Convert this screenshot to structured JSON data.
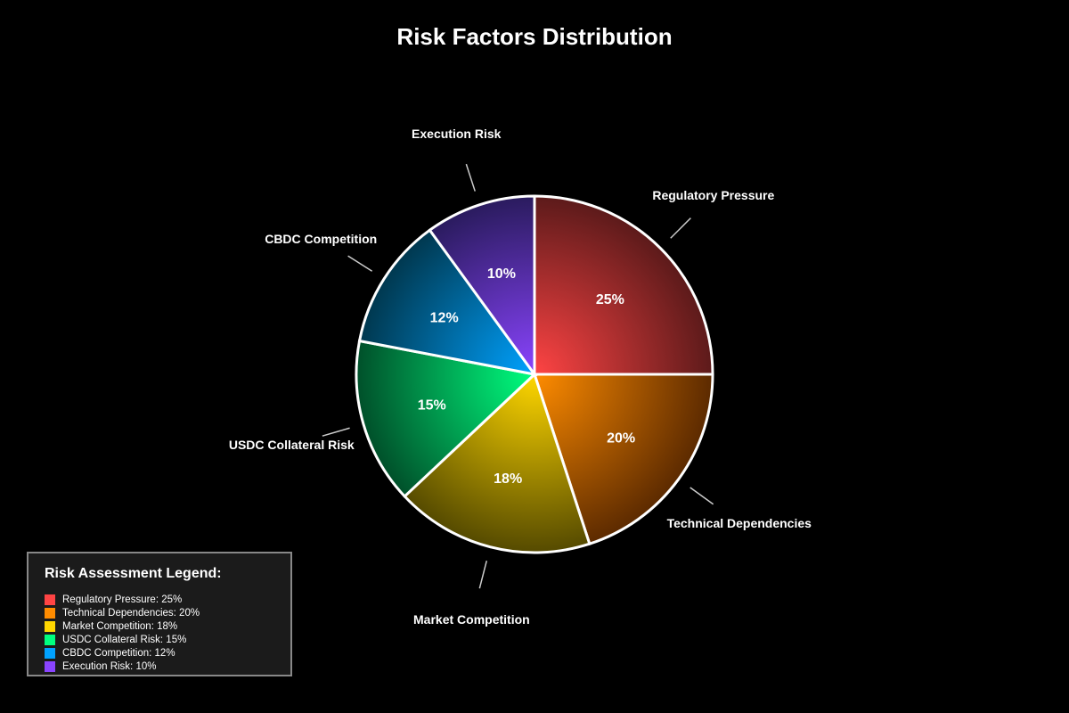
{
  "chart_data": {
    "type": "pie",
    "title": "Risk Factors Distribution",
    "slices": [
      {
        "label": "Regulatory Pressure",
        "value": 25,
        "display": "25%",
        "color": "#ff4444",
        "dark": "#5c1a1a"
      },
      {
        "label": "Technical Dependencies",
        "value": 20,
        "display": "20%",
        "color": "#ff8c00",
        "dark": "#5c2a00"
      },
      {
        "label": "Market Competition",
        "value": 18,
        "display": "18%",
        "color": "#ffd700",
        "dark": "#554a00"
      },
      {
        "label": "USDC Collateral Risk",
        "value": 15,
        "display": "15%",
        "color": "#00ff7f",
        "dark": "#00502a"
      },
      {
        "label": "CBDC Competition",
        "value": 12,
        "display": "12%",
        "color": "#00a2ff",
        "dark": "#00384f"
      },
      {
        "label": "Execution Risk",
        "value": 10,
        "display": "10%",
        "color": "#8a44ff",
        "dark": "#2a1b5e"
      }
    ]
  },
  "legend": {
    "title": "Risk Assessment Legend:",
    "items": [
      {
        "text": "Regulatory Pressure: 25%",
        "color": "#ff4444"
      },
      {
        "text": "Technical Dependencies: 20%",
        "color": "#ff8c00"
      },
      {
        "text": "Market Competition: 18%",
        "color": "#ffd700"
      },
      {
        "text": "USDC Collateral Risk: 15%",
        "color": "#00ff7f"
      },
      {
        "text": "CBDC Competition: 12%",
        "color": "#00a2ff"
      },
      {
        "text": "Execution Risk: 10%",
        "color": "#8a44ff"
      }
    ]
  }
}
